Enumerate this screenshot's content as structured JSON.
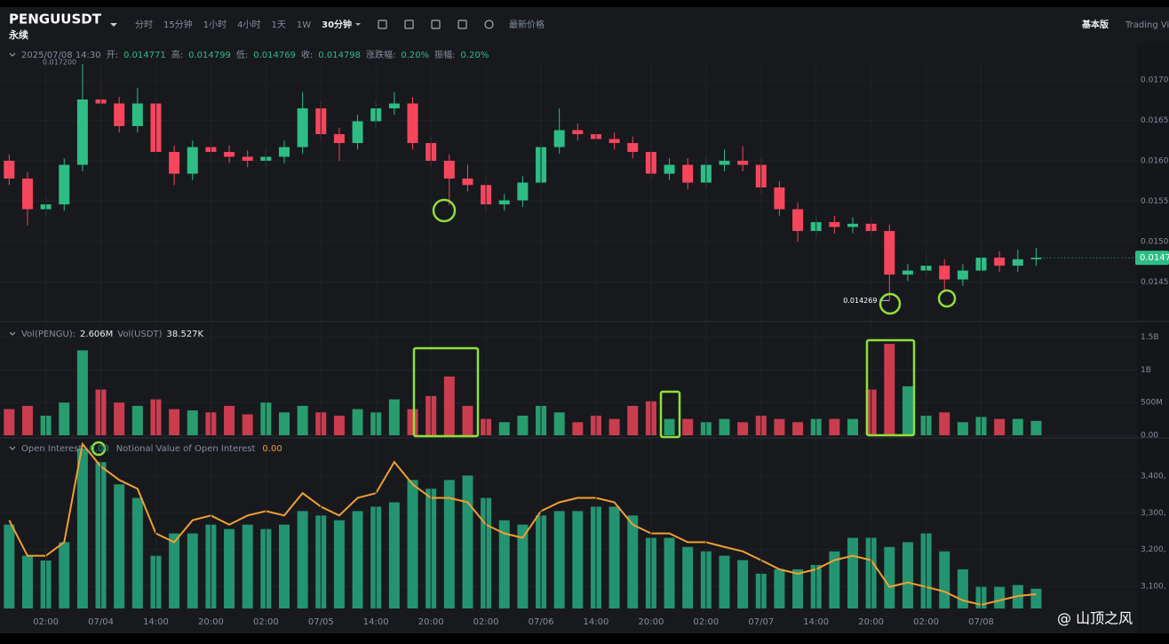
{
  "header": {
    "symbol": "PENGUUSDT",
    "contract": "永续",
    "intervals": [
      "分时",
      "15分钟",
      "1小时",
      "4小时",
      "1天",
      "1W",
      "30分钟"
    ],
    "active": 6,
    "price_type": "最新价格",
    "mode": "基本版",
    "trading_view": "Trading Vi"
  },
  "watermark": "@ 山顶之风",
  "chart_data": [
    {
      "type": "candlestick",
      "info": {
        "time": "2025/07/08 14:30",
        "fields": [
          {
            "label": "开:",
            "value": "0.014771"
          },
          {
            "label": "高:",
            "value": "0.014799"
          },
          {
            "label": "低:",
            "value": "0.014769"
          },
          {
            "label": "收:",
            "value": "0.014798"
          },
          {
            "label": "涨跌幅:",
            "value": "0.20%"
          },
          {
            "label": "振幅:",
            "value": "0.20%"
          }
        ]
      },
      "open": [
        0.016,
        0.01578,
        0.0154,
        0.01546,
        0.01595,
        0.01676,
        0.01671,
        0.01643,
        0.01671,
        0.01611,
        0.01584,
        0.01617,
        0.01611,
        0.01605,
        0.016,
        0.01605,
        0.01617,
        0.01665,
        0.01633,
        0.01622,
        0.01649,
        0.01665,
        0.01671,
        0.01622,
        0.016,
        0.01578,
        0.0157,
        0.01546,
        0.01551,
        0.01573,
        0.01617,
        0.01638,
        0.01633,
        0.01627,
        0.01622,
        0.01611,
        0.01584,
        0.01595,
        0.01573,
        0.01595,
        0.016,
        0.01595,
        0.01567,
        0.0154,
        0.01513,
        0.01524,
        0.01518,
        0.01522,
        0.01513,
        0.01459,
        0.01464,
        0.0147,
        0.01453,
        0.01464,
        0.0148,
        0.0147,
        0.01478
      ],
      "high": [
        0.01608,
        0.01586,
        0.01554,
        0.01603,
        0.0172,
        0.017,
        0.01679,
        0.0169,
        0.01679,
        0.01619,
        0.01625,
        0.01625,
        0.01619,
        0.01613,
        0.01613,
        0.01625,
        0.01685,
        0.01673,
        0.01641,
        0.01657,
        0.01673,
        0.01685,
        0.01679,
        0.0163,
        0.01608,
        0.01595,
        0.01578,
        0.01559,
        0.01581,
        0.01625,
        0.01665,
        0.01646,
        0.01641,
        0.01635,
        0.0163,
        0.01619,
        0.01603,
        0.01603,
        0.01603,
        0.01614,
        0.01618,
        0.01603,
        0.01575,
        0.01548,
        0.01532,
        0.01532,
        0.0153,
        0.0153,
        0.01521,
        0.01472,
        0.01485,
        0.01478,
        0.01472,
        0.01495,
        0.01488,
        0.0149,
        0.01492
      ],
      "low": [
        0.0157,
        0.0152,
        0.01532,
        0.01538,
        0.01587,
        0.01663,
        0.01635,
        0.01635,
        0.01603,
        0.0157,
        0.01576,
        0.01603,
        0.01597,
        0.01592,
        0.01592,
        0.01597,
        0.01609,
        0.01625,
        0.016,
        0.01614,
        0.01641,
        0.01657,
        0.01614,
        0.01592,
        0.01545,
        0.01562,
        0.01538,
        0.01538,
        0.01543,
        0.01565,
        0.01609,
        0.01625,
        0.01619,
        0.01614,
        0.01603,
        0.01576,
        0.01576,
        0.01565,
        0.01565,
        0.01587,
        0.01587,
        0.01559,
        0.01532,
        0.015,
        0.01505,
        0.0151,
        0.0151,
        0.01505,
        0.014269,
        0.01451,
        0.01456,
        0.01438,
        0.01445,
        0.01456,
        0.01462,
        0.01462,
        0.0147
      ],
      "close": [
        0.01578,
        0.0154,
        0.01546,
        0.01595,
        0.01676,
        0.01671,
        0.01643,
        0.01671,
        0.01611,
        0.01584,
        0.01617,
        0.01611,
        0.01605,
        0.016,
        0.01605,
        0.01617,
        0.01665,
        0.01633,
        0.01622,
        0.01649,
        0.01665,
        0.01671,
        0.01622,
        0.016,
        0.01578,
        0.0157,
        0.01546,
        0.01551,
        0.01573,
        0.01617,
        0.01638,
        0.01633,
        0.01627,
        0.01622,
        0.01611,
        0.01584,
        0.01595,
        0.01573,
        0.01595,
        0.016,
        0.01595,
        0.01567,
        0.0154,
        0.01513,
        0.01524,
        0.01518,
        0.01522,
        0.01513,
        0.01459,
        0.01464,
        0.0147,
        0.01453,
        0.01464,
        0.0148,
        0.0147,
        0.01478,
        0.014798
      ],
      "up_color": "#2ebd85",
      "down_color": "#f6465d",
      "xlim": [
        -0.5,
        61.5
      ],
      "ylim": [
        0.01403,
        0.0172
      ],
      "yticks": [
        {
          "value": 0.017,
          "label": "0.0170"
        },
        {
          "value": 0.0165,
          "label": "0.0165"
        },
        {
          "value": 0.016,
          "label": "0.0160"
        },
        {
          "value": 0.0155,
          "label": "0.0155"
        },
        {
          "value": 0.015,
          "label": "0.0150"
        },
        {
          "value": 0.0145,
          "label": "0.0145"
        }
      ],
      "last_label": "0.0147",
      "max_label": "0.017200",
      "min_label": "0.014269"
    },
    {
      "type": "bar",
      "legend": [
        {
          "label": "Vol(PENGU):",
          "value": "2.606M"
        },
        {
          "label": "Vol(USDT)",
          "value": "38.527K"
        }
      ],
      "values": [
        400000000,
        450000000,
        300000000,
        500000000,
        1300000000,
        700000000,
        500000000,
        450000000,
        550000000,
        400000000,
        380000000,
        350000000,
        450000000,
        320000000,
        500000000,
        350000000,
        450000000,
        350000000,
        300000000,
        400000000,
        350000000,
        550000000,
        400000000,
        600000000,
        900000000,
        450000000,
        250000000,
        200000000,
        300000000,
        450000000,
        350000000,
        200000000,
        300000000,
        250000000,
        450000000,
        520000000,
        250000000,
        250000000,
        200000000,
        250000000,
        200000000,
        300000000,
        250000000,
        200000000,
        250000000,
        250000000,
        250000000,
        700000000,
        1400000000,
        750000000,
        300000000,
        350000000,
        200000000,
        280000000,
        250000000,
        250000000,
        220000000
      ],
      "up_color": "#2ebd85",
      "down_color": "#f6465d",
      "xlim": [
        -0.5,
        61.5
      ],
      "ylim": [
        0,
        1700000000
      ],
      "yticks": [
        {
          "value": 1500000000,
          "label": "1.5B"
        },
        {
          "value": 1000000000,
          "label": "1B"
        },
        {
          "value": 500000000,
          "label": "500M"
        },
        {
          "value": 0,
          "label": "0.00"
        }
      ]
    },
    {
      "type": "bar_line",
      "series": [
        {
          "name": "Open Interest",
          "kind": "bar",
          "color": "#26a17a",
          "legend_value": "0.00",
          "values": [
            3268,
            3183,
            3170,
            3220,
            3476,
            3439,
            3378,
            3341,
            3183,
            3244,
            3244,
            3268,
            3256,
            3268,
            3256,
            3268,
            3305,
            3293,
            3280,
            3305,
            3317,
            3329,
            3390,
            3366,
            3390,
            3402,
            3341,
            3280,
            3268,
            3293,
            3305,
            3305,
            3317,
            3317,
            3293,
            3232,
            3232,
            3207,
            3195,
            3183,
            3171,
            3134,
            3146,
            3146,
            3158,
            3195,
            3232,
            3232,
            3207,
            3220,
            3244,
            3195,
            3146,
            3098,
            3098,
            3103,
            3093
          ]
        },
        {
          "name": "Notional Value of Open Interest",
          "kind": "line",
          "color": "#f0a030",
          "legend_value": "0.00",
          "values": [
            3280,
            3183,
            3183,
            3220,
            3488,
            3427,
            3390,
            3366,
            3244,
            3220,
            3280,
            3293,
            3268,
            3293,
            3305,
            3293,
            3354,
            3317,
            3293,
            3341,
            3354,
            3439,
            3378,
            3341,
            3341,
            3329,
            3268,
            3244,
            3232,
            3305,
            3329,
            3341,
            3341,
            3329,
            3268,
            3244,
            3244,
            3220,
            3220,
            3207,
            3195,
            3171,
            3146,
            3134,
            3146,
            3171,
            3183,
            3171,
            3098,
            3110,
            3098,
            3085,
            3061,
            3049,
            3061,
            3073,
            3078
          ]
        }
      ],
      "xlim": [
        -0.5,
        61.5
      ],
      "ylim": [
        3039,
        3500
      ],
      "yticks": [
        {
          "value": 3400,
          "label": "3,400,"
        },
        {
          "value": 3300,
          "label": "3,300,"
        },
        {
          "value": 3200,
          "label": "3,200,"
        },
        {
          "value": 3100,
          "label": "3,100,"
        }
      ],
      "xticks": [
        {
          "value": 2,
          "label": "02:00"
        },
        {
          "value": 5,
          "label": "07/04"
        },
        {
          "value": 8,
          "label": "14:00"
        },
        {
          "value": 11,
          "label": "20:00"
        },
        {
          "value": 14,
          "label": "02:00"
        },
        {
          "value": 17,
          "label": "07/05"
        },
        {
          "value": 20,
          "label": "14:00"
        },
        {
          "value": 23,
          "label": "20:00"
        },
        {
          "value": 26,
          "label": "02:00"
        },
        {
          "value": 29,
          "label": "07/06"
        },
        {
          "value": 32,
          "label": "14:00"
        },
        {
          "value": 35,
          "label": "20:00"
        },
        {
          "value": 38,
          "label": "02:00"
        },
        {
          "value": 41,
          "label": "07/07"
        },
        {
          "value": 44,
          "label": "14:00"
        },
        {
          "value": 47,
          "label": "20:00"
        },
        {
          "value": 50,
          "label": "02:00"
        },
        {
          "value": 53,
          "label": "07/08"
        }
      ]
    }
  ]
}
